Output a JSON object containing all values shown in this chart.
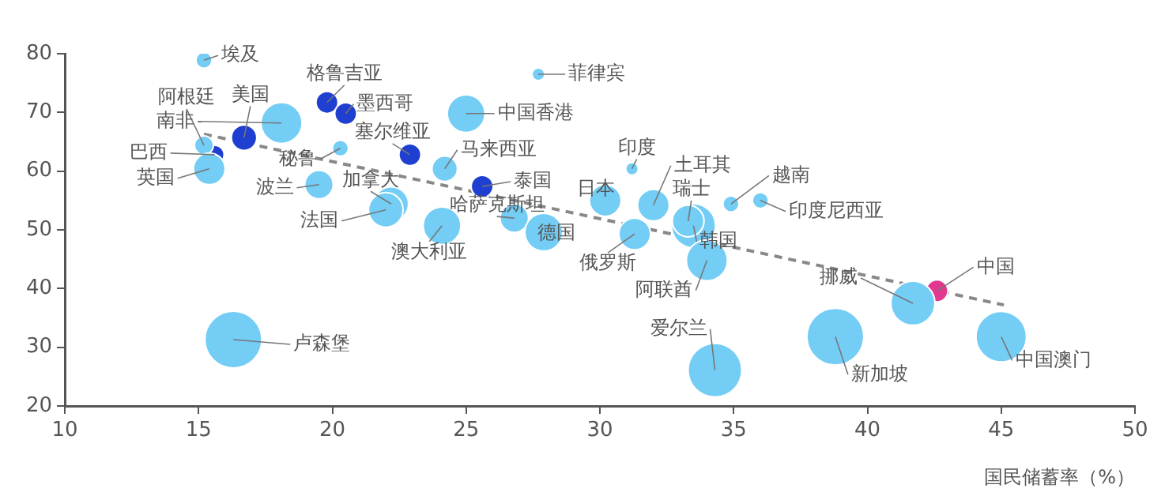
{
  "chart_data": {
    "type": "bubble",
    "xlabel": "国民储蓄率（%）",
    "xlim": [
      10,
      50
    ],
    "xticks": [
      10,
      15,
      20,
      25,
      30,
      35,
      40,
      45,
      50
    ],
    "ylim": [
      20,
      80
    ],
    "yticks": [
      20,
      30,
      40,
      50,
      60,
      70,
      80
    ],
    "series": [
      {
        "color": "#73cdf5",
        "x": [
          15.2,
          18.1,
          15.2,
          15.4,
          20.3,
          19.5,
          22.2,
          22.0,
          24.1,
          24.2,
          25.0,
          27.7,
          26.8,
          27.9,
          30.2,
          31.2,
          31.3,
          32.0,
          33.5,
          33.3,
          34.0,
          34.9,
          36.0,
          41.7,
          38.8,
          45.0,
          16.3,
          34.3
        ],
        "values": [
          78.9,
          68.2,
          64.4,
          60.4,
          63.9,
          57.7,
          54.4,
          53.4,
          50.7,
          60.4,
          69.8,
          76.5,
          52.0,
          49.6,
          55.0,
          60.4,
          49.3,
          54.2,
          50.7,
          51.5,
          44.8,
          54.4,
          55.0,
          37.5,
          31.8,
          31.8,
          31.3,
          26.1
        ],
        "sizes": [
          0.08,
          0.52,
          0.11,
          0.31,
          0.08,
          0.25,
          0.37,
          0.37,
          0.44,
          0.2,
          0.44,
          0.05,
          0.25,
          0.44,
          0.31,
          0.05,
          0.31,
          0.31,
          0.6,
          0.31,
          0.52,
          0.08,
          0.08,
          0.6,
          1,
          0.79,
          1,
          0.89
        ]
      },
      {
        "color": "#1e3fcf",
        "x": [
          16.7,
          15.6,
          19.8,
          20.5,
          22.9,
          25.6
        ],
        "values": [
          65.7,
          62.8,
          71.7,
          69.8,
          62.8,
          57.4
        ],
        "sizes": [
          0.2,
          0.11,
          0.15,
          0.15,
          0.15,
          0.15
        ]
      },
      {
        "color": "#e0398f",
        "x": [
          42.6
        ],
        "values": [
          39.6
        ],
        "sizes": [
          0.15
        ]
      },
      {
        "type": "line",
        "color": "#888888",
        "line_style": "dashed",
        "marker": "none",
        "x": [
          15.2,
          45.1
        ],
        "values": [
          66.3,
          37.2
        ]
      }
    ],
    "annotations": [
      {
        "text": "埃及",
        "x": 15.2,
        "y": 78.9
      },
      {
        "text": "美国",
        "x": 16.7,
        "y": 65.7
      },
      {
        "text": "阿根廷",
        "x": 15.2,
        "y": 64.4
      },
      {
        "text": "南非",
        "x": 18.1,
        "y": 68.2
      },
      {
        "text": "巴西",
        "x": 15.6,
        "y": 62.8
      },
      {
        "text": "英国",
        "x": 15.4,
        "y": 60.4
      },
      {
        "text": "格鲁吉亚",
        "x": 19.8,
        "y": 71.7
      },
      {
        "text": "墨西哥",
        "x": 20.5,
        "y": 69.8
      },
      {
        "text": "塞尔维亚",
        "x": 22.9,
        "y": 62.8
      },
      {
        "text": "秘鲁",
        "x": 20.3,
        "y": 63.9
      },
      {
        "text": "加拿大",
        "x": 22.2,
        "y": 54.4
      },
      {
        "text": "波兰",
        "x": 19.5,
        "y": 57.7
      },
      {
        "text": "法国",
        "x": 22.0,
        "y": 53.4
      },
      {
        "text": "澳大利亚",
        "x": 24.1,
        "y": 50.7
      },
      {
        "text": "中国香港",
        "x": 25.0,
        "y": 69.8
      },
      {
        "text": "马来西亚",
        "x": 24.2,
        "y": 60.4
      },
      {
        "text": "菲律宾",
        "x": 27.7,
        "y": 76.5
      },
      {
        "text": "泰国",
        "x": 25.6,
        "y": 57.4
      },
      {
        "text": "哈萨克斯坦",
        "x": 26.8,
        "y": 52.0
      },
      {
        "text": "德国",
        "x": 27.9,
        "y": 49.6
      },
      {
        "text": "日本",
        "x": 30.2,
        "y": 55.0
      },
      {
        "text": "印度",
        "x": 31.2,
        "y": 60.4
      },
      {
        "text": "俄罗斯",
        "x": 31.3,
        "y": 49.3
      },
      {
        "text": "阿联酋",
        "x": 34.0,
        "y": 44.8
      },
      {
        "text": "土耳其",
        "x": 32.0,
        "y": 54.2
      },
      {
        "text": "瑞士",
        "x": 33.3,
        "y": 51.5
      },
      {
        "text": "韩国",
        "x": 33.5,
        "y": 50.7
      },
      {
        "text": "越南",
        "x": 34.9,
        "y": 54.4
      },
      {
        "text": "印度尼西亚",
        "x": 36.0,
        "y": 55.0
      },
      {
        "text": "挪威",
        "x": 41.7,
        "y": 37.5
      },
      {
        "text": "中国",
        "x": 42.6,
        "y": 39.6
      },
      {
        "text": "新加坡",
        "x": 38.8,
        "y": 31.8
      },
      {
        "text": "中国澳门",
        "x": 45.0,
        "y": 31.8
      },
      {
        "text": "卢森堡",
        "x": 16.3,
        "y": 31.3
      },
      {
        "text": "爱尔兰",
        "x": 34.3,
        "y": 26.1
      }
    ]
  }
}
